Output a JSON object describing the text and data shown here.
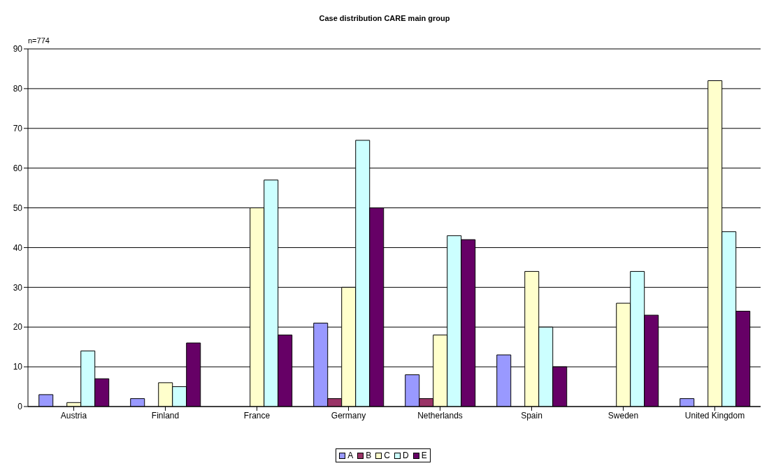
{
  "chart_data": {
    "type": "bar",
    "title": "Case distribution CARE main group",
    "annotations": [
      "n=774"
    ],
    "categories": [
      "Austria",
      "Finland",
      "France",
      "Germany",
      "Netherlands",
      "Spain",
      "Sweden",
      "United Kingdom"
    ],
    "series": [
      {
        "name": "A",
        "color": "#9999ff",
        "values": [
          3,
          2,
          0,
          21,
          8,
          13,
          0,
          2
        ]
      },
      {
        "name": "B",
        "color": "#993366",
        "values": [
          0,
          0,
          0,
          2,
          2,
          0,
          0,
          0
        ]
      },
      {
        "name": "C",
        "color": "#ffffcc",
        "values": [
          1,
          6,
          50,
          30,
          18,
          34,
          26,
          82
        ]
      },
      {
        "name": "D",
        "color": "#ccffff",
        "values": [
          14,
          5,
          57,
          67,
          43,
          20,
          34,
          44
        ]
      },
      {
        "name": "E",
        "color": "#660066",
        "values": [
          7,
          16,
          18,
          50,
          42,
          10,
          23,
          24
        ]
      }
    ],
    "ylim": [
      0,
      90
    ],
    "yticks": [
      0,
      10,
      20,
      30,
      40,
      50,
      60,
      70,
      80,
      90
    ],
    "grid": "y",
    "legend": "bottom"
  }
}
